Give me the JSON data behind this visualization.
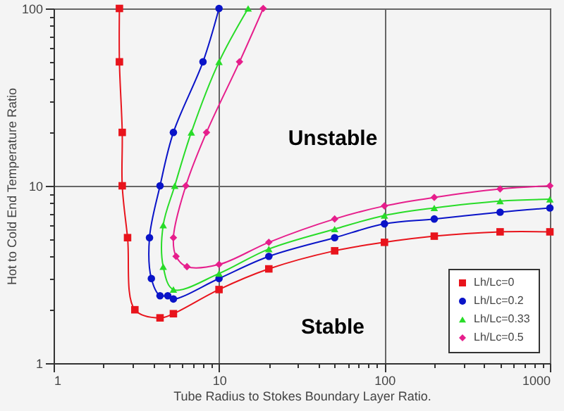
{
  "chart_data": {
    "type": "line",
    "xlabel": "Tube Radius to Stokes Boundary Layer Ratio.",
    "ylabel": "Hot to Cold End Temperature Ratio",
    "annotations": [
      "Unstable",
      "Stable"
    ],
    "log": "xy",
    "grid": true,
    "legend": "bottom right",
    "line_style": "solid",
    "xlim": [
      1,
      1000
    ],
    "ylim": [
      1,
      100
    ],
    "xticks": [
      1,
      {
        "value": 2,
        "label": null
      },
      {
        "value": 3,
        "label": null
      },
      {
        "value": 4,
        "label": null
      },
      {
        "value": 5,
        "label": null
      },
      {
        "value": 6,
        "label": null
      },
      {
        "value": 7,
        "label": null
      },
      {
        "value": 8,
        "label": null
      },
      {
        "value": 9,
        "label": null
      },
      10,
      {
        "value": 20,
        "label": null
      },
      {
        "value": 30,
        "label": null
      },
      {
        "value": 40,
        "label": null
      },
      {
        "value": 50,
        "label": null
      },
      {
        "value": 60,
        "label": null
      },
      {
        "value": 70,
        "label": null
      },
      {
        "value": 80,
        "label": null
      },
      {
        "value": 90,
        "label": null
      },
      100,
      {
        "value": 200,
        "label": null
      },
      {
        "value": 300,
        "label": null
      },
      {
        "value": 400,
        "label": null
      },
      {
        "value": 500,
        "label": null
      },
      {
        "value": 600,
        "label": null
      },
      {
        "value": 700,
        "label": null
      },
      {
        "value": 800,
        "label": null
      },
      {
        "value": 900,
        "label": null
      },
      1000
    ],
    "yticks": [
      1,
      {
        "value": 2,
        "label": null
      },
      {
        "value": 3,
        "label": null
      },
      {
        "value": 4,
        "label": null
      },
      {
        "value": 5,
        "label": null
      },
      {
        "value": 6,
        "label": null
      },
      {
        "value": 7,
        "label": null
      },
      {
        "value": 8,
        "label": null
      },
      {
        "value": 9,
        "label": null
      },
      10,
      {
        "value": 20,
        "label": null
      },
      {
        "value": 30,
        "label": null
      },
      {
        "value": 40,
        "label": null
      },
      {
        "value": 50,
        "label": null
      },
      {
        "value": 60,
        "label": null
      },
      {
        "value": 70,
        "label": null
      },
      {
        "value": 80,
        "label": null
      },
      {
        "value": 90,
        "label": null
      },
      100
    ],
    "series": [
      {
        "name": "Lh/Lc=0",
        "color": "#e8141c",
        "marker": "square",
        "x": [
          2.5,
          2.5,
          2.6,
          2.6,
          2.8,
          3.1,
          4.4,
          5.3,
          10,
          20,
          50,
          100,
          200,
          500,
          1000
        ],
        "values": [
          100,
          50,
          20,
          10,
          5.1,
          2.0,
          1.8,
          1.9,
          2.6,
          3.4,
          4.3,
          4.8,
          5.2,
          5.5,
          5.5
        ]
      },
      {
        "name": "Lh/Lc=0.2",
        "color": "#0a14c8",
        "marker": "circle",
        "x": [
          10,
          8,
          5.3,
          4.4,
          3.8,
          3.9,
          4.4,
          4.9,
          5.3,
          10,
          20,
          50,
          100,
          200,
          500,
          1000
        ],
        "values": [
          100,
          50,
          20,
          10,
          5.1,
          3.0,
          2.4,
          2.4,
          2.3,
          3.0,
          4.0,
          5.1,
          6.1,
          6.5,
          7.1,
          7.5
        ]
      },
      {
        "name": "Lh/Lc=0.33",
        "color": "#28dc28",
        "marker": "triangle",
        "x": [
          15,
          10,
          6.8,
          5.4,
          4.6,
          4.6,
          5.3,
          10,
          20,
          50,
          100,
          200,
          500,
          1000
        ],
        "values": [
          100,
          50,
          20,
          10,
          6.0,
          3.5,
          2.6,
          3.2,
          4.4,
          5.7,
          6.8,
          7.5,
          8.2,
          8.4
        ]
      },
      {
        "name": "Lh/Lc=0.5",
        "color": "#e61e8c",
        "marker": "diamond",
        "x": [
          18.5,
          13.3,
          8.4,
          6.3,
          5.3,
          5.5,
          6.4,
          10,
          20,
          50,
          100,
          200,
          500,
          1000
        ],
        "values": [
          100,
          50,
          20,
          10,
          5.1,
          4.0,
          3.5,
          3.6,
          4.8,
          6.5,
          7.7,
          8.6,
          9.6,
          10
        ]
      }
    ]
  }
}
